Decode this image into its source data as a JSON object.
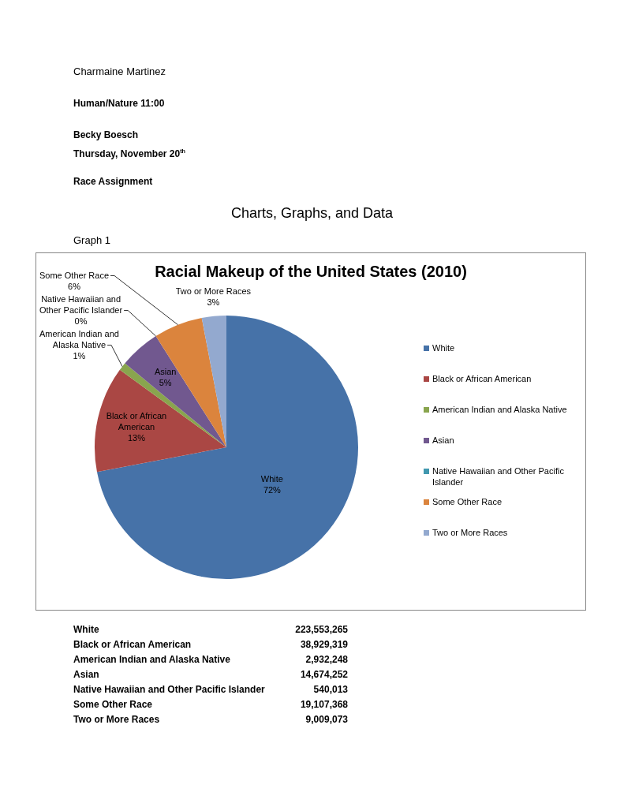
{
  "chart_data": [
    {
      "type": "pie",
      "title": "Racial Makeup of the United States (2010)",
      "categories": [
        "White",
        "Black or African American",
        "American Indian and Alaska Native",
        "Asian",
        "Native Hawaiian and Other Pacific Islander",
        "Some Other Race",
        "Two or More Races"
      ],
      "values": [
        72,
        13,
        1,
        5,
        0,
        6,
        3
      ],
      "colors": [
        "#4672a8",
        "#aa4744",
        "#89a54e",
        "#71588f",
        "#4198af",
        "#db843d",
        "#93a9cf"
      ],
      "value_labels": [
        "72%",
        "13%",
        "1%",
        "5%",
        "0%",
        "6%",
        "3%"
      ],
      "legend": "right",
      "annotations": [
        "Charmaine Martinez",
        "Human/Nature 11:00",
        "Becky Boesch",
        "Thursday, November 20$^{th}$",
        "Race Assignment",
        "Charts, Graphs, and Data",
        "Graph 1"
      ]
    },
    {
      "type": "other",
      "categories": [
        "White",
        "Black or African American",
        "American Indian and Alaska Native",
        "Asian",
        "Native Hawaiian and Other Pacific Islander",
        "Some Other Race",
        "Two or More Races"
      ],
      "value_labels": [
        "223,553,265",
        "38,929,319",
        "2,932,248",
        "14,674,252",
        "540,013",
        "19,107,368",
        "9,009,073"
      ]
    }
  ]
}
